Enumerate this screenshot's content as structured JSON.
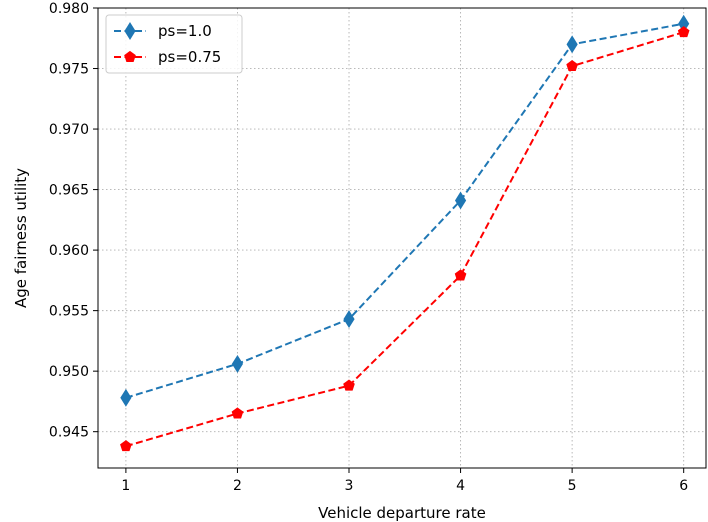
{
  "chart_data": {
    "type": "line",
    "title": "",
    "xlabel": "Vehicle departure rate",
    "ylabel": "Age fairness utility",
    "x": [
      1,
      2,
      3,
      4,
      5,
      6
    ],
    "xticks": [
      "1",
      "2",
      "3",
      "4",
      "5",
      "6"
    ],
    "xlim": [
      0.75,
      6.2
    ],
    "ylim": [
      0.942,
      0.98
    ],
    "yticks": [
      "0.945",
      "0.950",
      "0.955",
      "0.960",
      "0.965",
      "0.970",
      "0.975",
      "0.980"
    ],
    "grid": true,
    "legend_position": "top-left",
    "series": [
      {
        "name": "ps=1.0",
        "color": "#1f77b4",
        "marker": "thin-diamond",
        "line_style": "dashed",
        "values": [
          0.9478,
          0.9506,
          0.9543,
          0.9641,
          0.977,
          0.9787
        ]
      },
      {
        "name": "ps=0.75",
        "color": "#ff0000",
        "marker": "pentagon",
        "line_style": "dashed",
        "values": [
          0.9438,
          0.9465,
          0.9488,
          0.9579,
          0.9752,
          0.978
        ]
      }
    ]
  }
}
